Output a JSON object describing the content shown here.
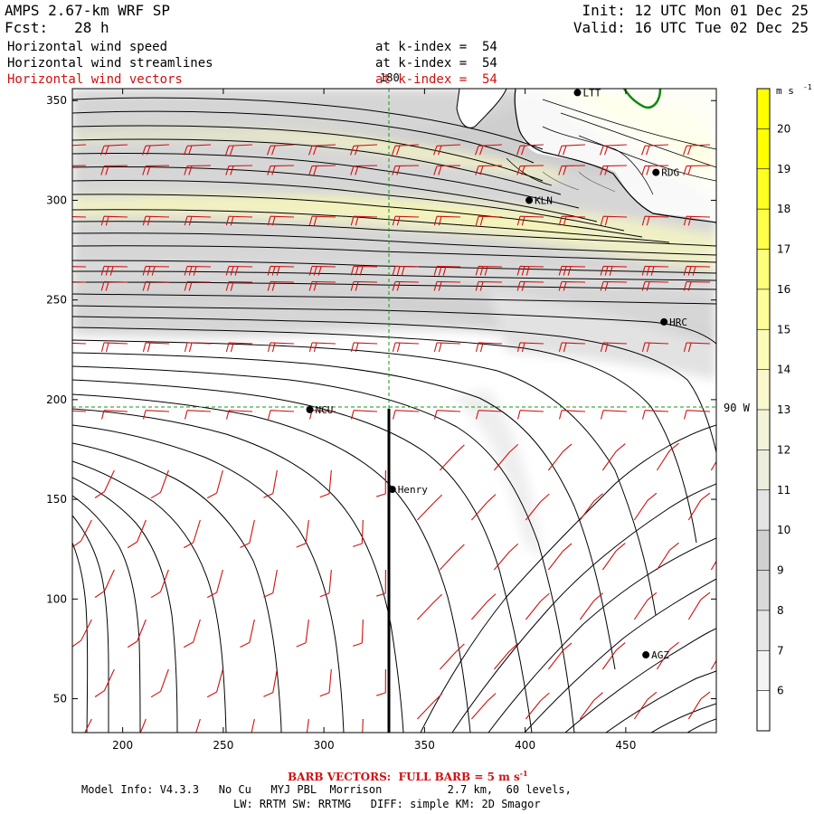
{
  "header": {
    "title": "AMPS 2.67-km WRF SP",
    "forecast": "Fcst:   28 h",
    "init": "Init: 12 UTC Mon 01 Dec 25",
    "valid": "Valid: 16 UTC Tue 02 Dec 25",
    "fields": [
      {
        "label": "Horizontal wind speed",
        "level": "at k-index =  54",
        "color": "#000000"
      },
      {
        "label": "Horizontal wind streamlines",
        "level": "at k-index =  54",
        "color": "#000000"
      },
      {
        "label": "Horizontal wind vectors",
        "level": "at k-index =  54",
        "color": "#d01010"
      }
    ]
  },
  "axes": {
    "x_ticks": [
      200,
      250,
      300,
      350,
      400,
      450
    ],
    "y_ticks": [
      50,
      100,
      150,
      200,
      250,
      300,
      350
    ],
    "xlim": [
      175,
      495
    ],
    "ylim": [
      33,
      356
    ],
    "meridian_label": "180",
    "parallel_label": "90 W"
  },
  "stations": [
    {
      "name": "NCU",
      "x": 293,
      "y": 195
    },
    {
      "name": "Henry",
      "x": 334,
      "y": 155
    },
    {
      "name": "KLN",
      "x": 402,
      "y": 300
    },
    {
      "name": "RDG",
      "x": 465,
      "y": 314
    },
    {
      "name": "HRC",
      "x": 469,
      "y": 239
    },
    {
      "name": "AGZ",
      "x": 460,
      "y": 72
    },
    {
      "name": "LTT",
      "x": 426,
      "y": 354
    }
  ],
  "colorbar": {
    "unit": "m s",
    "unit_exp": "-1",
    "levels": [
      6,
      7,
      8,
      9,
      10,
      11,
      12,
      13,
      14,
      15,
      16,
      17,
      18,
      19,
      20
    ],
    "colors": [
      "#ffffff",
      "#f4f4f4",
      "#e6e6e6",
      "#d9d9d9",
      "#d0d0d0",
      "#e4e4e4",
      "#ededdc",
      "#f3f3d8",
      "#f8f8cc",
      "#fbfbb8",
      "#fdfd9a",
      "#fefe7a",
      "#ffff4a",
      "#ffff20",
      "#ffff00",
      "#ffff00"
    ]
  },
  "footer": {
    "barb_note": "BARB VECTORS:  FULL BARB = 5 m s",
    "barb_exp": "-1",
    "model_info": "Model Info: V4.3.3   No Cu   MYJ PBL  Morrison          2.7 km,  60 levels,",
    "physics": "LW: RRTM SW: RRTMG   DIFF: simple KM: 2D Smagor"
  }
}
